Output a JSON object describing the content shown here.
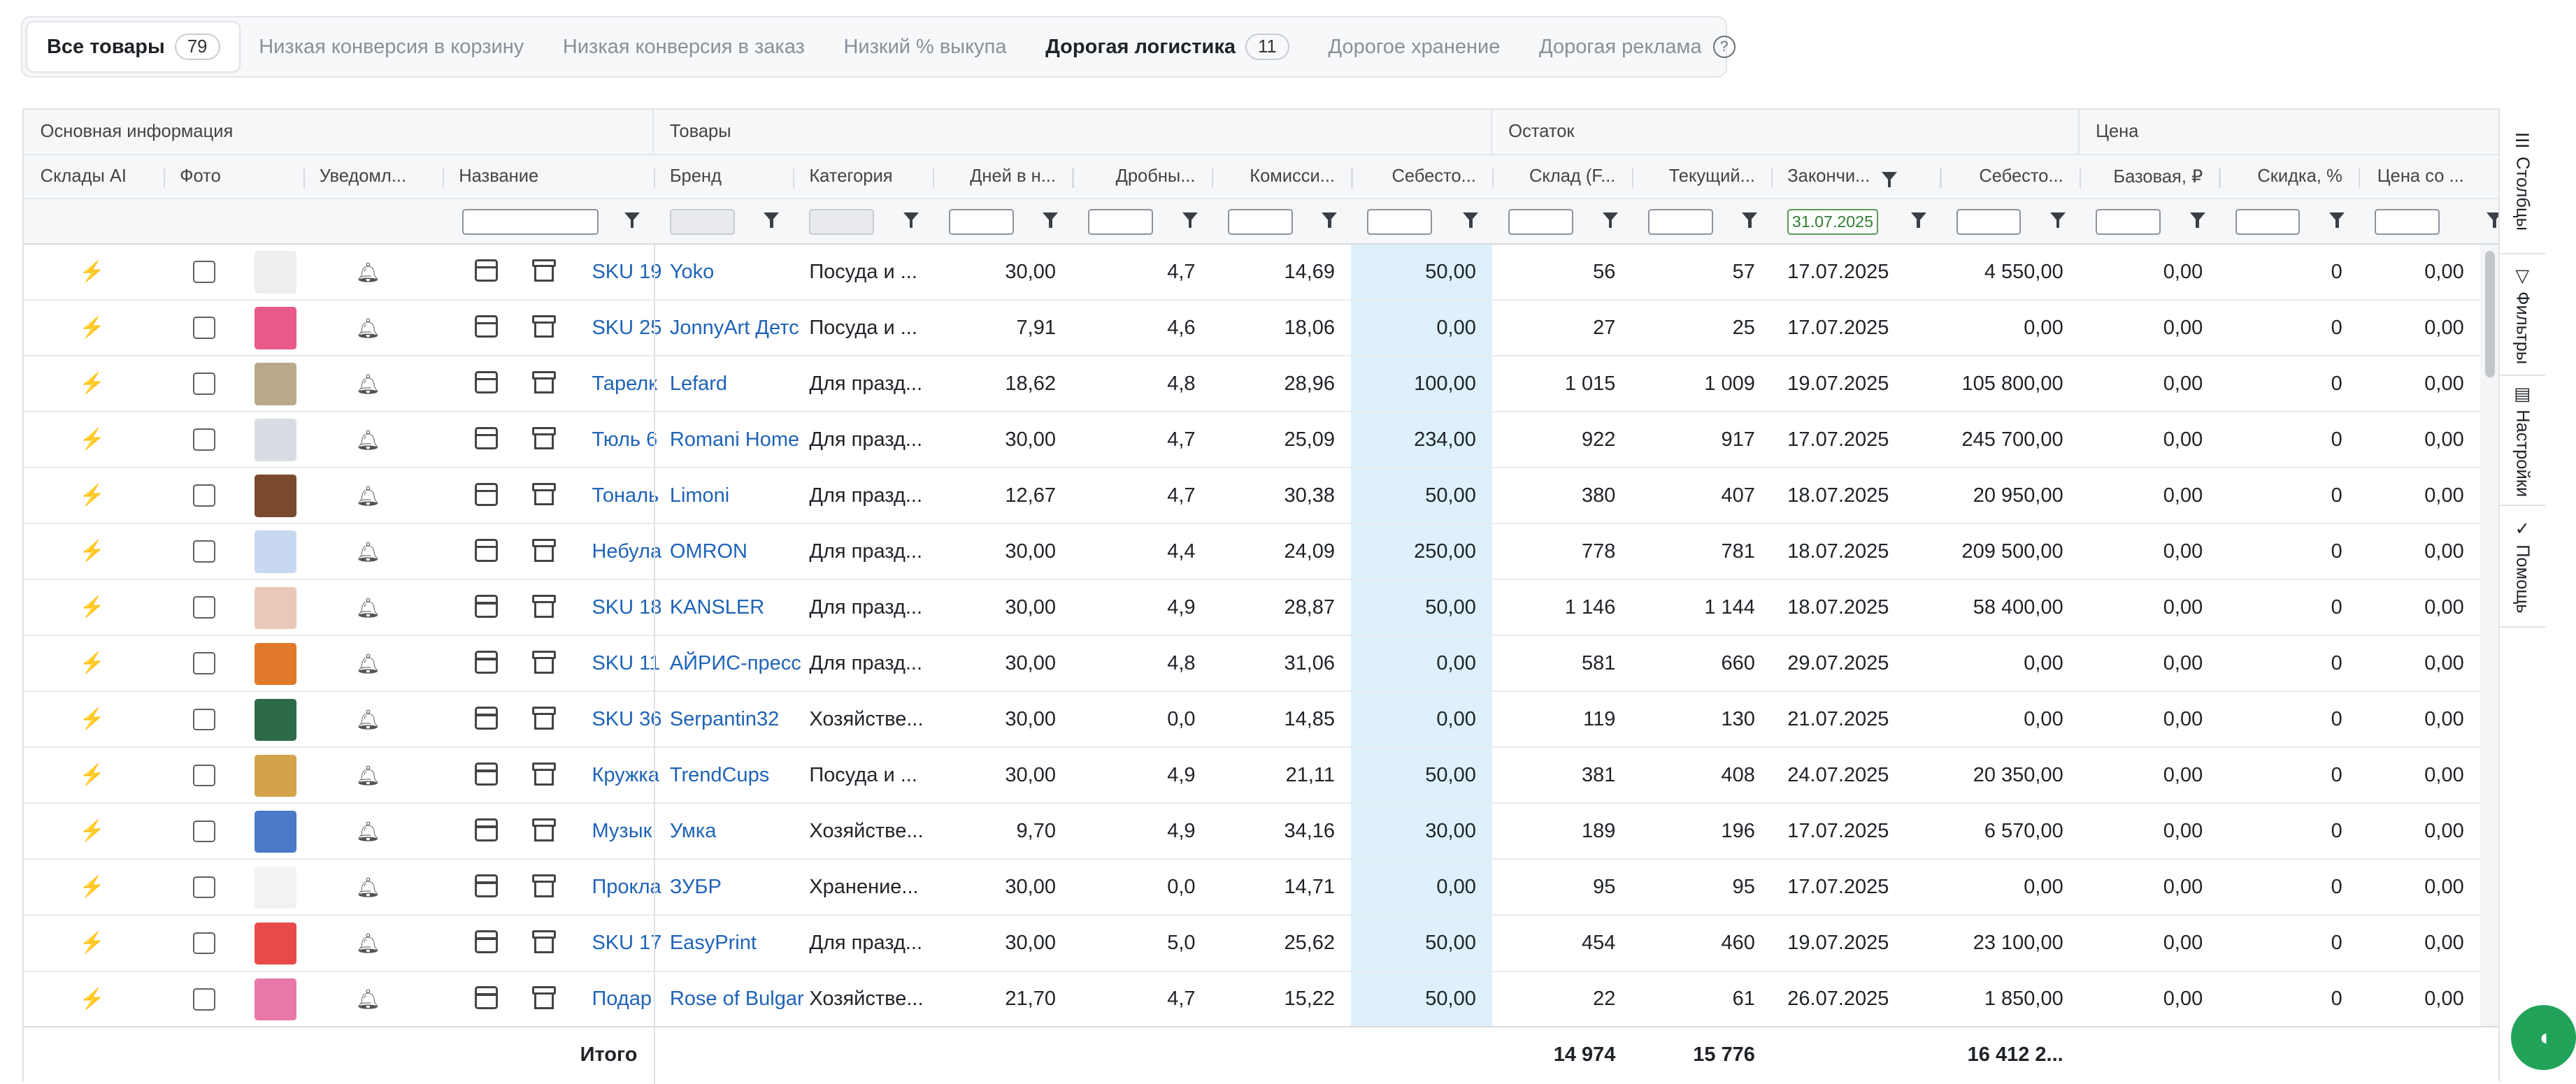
{
  "tabs": [
    {
      "label": "Все товары",
      "count": "79"
    },
    {
      "label": "Низкая конверсия в корзину",
      "count": null
    },
    {
      "label": "Низкая конверсия в заказ",
      "count": null
    },
    {
      "label": "Низкий % выкупа",
      "count": null
    },
    {
      "label": "Дорогая логистика",
      "count": "11"
    },
    {
      "label": "Дорогое хранение",
      "count": null
    },
    {
      "label": "Дорогая реклама",
      "count": null
    }
  ],
  "help_icon": "?",
  "groups": {
    "basic": "Основная информация",
    "goods": "Товары",
    "stock": "Остаток",
    "price": "Цена"
  },
  "columns": {
    "warehouses_ai": "Склады AI",
    "photo": "Фото",
    "notify": "Уведомл...",
    "name": "Название",
    "brand": "Бренд",
    "category": "Категория",
    "days": "Дней в н...",
    "fraction": "Дробны...",
    "commission": "Комисси...",
    "cost": "Себесто...",
    "warehouse_f": "Склад (F...",
    "current": "Текущий...",
    "ends": "Закончи...",
    "cost2": "Себесто...",
    "base_price": "Базовая, ₽",
    "discount": "Скидка, %",
    "price_with": "Цена со ..."
  },
  "ends_filter_value": "31.07.2025",
  "rows": [
    {
      "name": "SKU 19",
      "brand": "Yoko",
      "category": "Посуда и ...",
      "days": "30,00",
      "fraction": "4,7",
      "commission": "14,69",
      "cost": "50,00",
      "wh": "56",
      "cur": "57",
      "ends": "17.07.2025",
      "cost2": "4 550,00",
      "base": "0,00",
      "disc": "0",
      "pw": "0,00",
      "img": "#eeeeee"
    },
    {
      "name": "SKU 25",
      "brand": "JonnyArt Детс",
      "category": "Посуда и ...",
      "days": "7,91",
      "fraction": "4,6",
      "commission": "18,06",
      "cost": "0,00",
      "wh": "27",
      "cur": "25",
      "ends": "17.07.2025",
      "cost2": "0,00",
      "base": "0,00",
      "disc": "0",
      "pw": "0,00",
      "img": "#e85a8a"
    },
    {
      "name": "Тарелк",
      "brand": "Lefard",
      "category": "Для празд...",
      "days": "18,62",
      "fraction": "4,8",
      "commission": "28,96",
      "cost": "100,00",
      "wh": "1 015",
      "cur": "1 009",
      "ends": "19.07.2025",
      "cost2": "105 800,00",
      "base": "0,00",
      "disc": "0",
      "pw": "0,00",
      "img": "#b9a98a"
    },
    {
      "name": "Тюль 6",
      "brand": "Romani Home",
      "category": "Для празд...",
      "days": "30,00",
      "fraction": "4,7",
      "commission": "25,09",
      "cost": "234,00",
      "wh": "922",
      "cur": "917",
      "ends": "17.07.2025",
      "cost2": "245 700,00",
      "base": "0,00",
      "disc": "0",
      "pw": "0,00",
      "img": "#d9dde3"
    },
    {
      "name": "Тональ",
      "brand": "Limoni",
      "category": "Для празд...",
      "days": "12,67",
      "fraction": "4,7",
      "commission": "30,38",
      "cost": "50,00",
      "wh": "380",
      "cur": "407",
      "ends": "18.07.2025",
      "cost2": "20 950,00",
      "base": "0,00",
      "disc": "0",
      "pw": "0,00",
      "img": "#7a4a2e"
    },
    {
      "name": "Небула",
      "brand": "OMRON",
      "category": "Для празд...",
      "days": "30,00",
      "fraction": "4,4",
      "commission": "24,09",
      "cost": "250,00",
      "wh": "778",
      "cur": "781",
      "ends": "18.07.2025",
      "cost2": "209 500,00",
      "base": "0,00",
      "disc": "0",
      "pw": "0,00",
      "img": "#c8d8f0"
    },
    {
      "name": "SKU 18",
      "brand": "KANSLER",
      "category": "Для празд...",
      "days": "30,00",
      "fraction": "4,9",
      "commission": "28,87",
      "cost": "50,00",
      "wh": "1 146",
      "cur": "1 144",
      "ends": "18.07.2025",
      "cost2": "58 400,00",
      "base": "0,00",
      "disc": "0",
      "pw": "0,00",
      "img": "#e8c8b8"
    },
    {
      "name": "SKU 11",
      "brand": "АЙРИС-пресс",
      "category": "Для празд...",
      "days": "30,00",
      "fraction": "4,8",
      "commission": "31,06",
      "cost": "0,00",
      "wh": "581",
      "cur": "660",
      "ends": "29.07.2025",
      "cost2": "0,00",
      "base": "0,00",
      "disc": "0",
      "pw": "0,00",
      "img": "#e07a2a"
    },
    {
      "name": "SKU 36",
      "brand": "Serpantin32",
      "category": "Хозяйстве...",
      "days": "30,00",
      "fraction": "0,0",
      "commission": "14,85",
      "cost": "0,00",
      "wh": "119",
      "cur": "130",
      "ends": "21.07.2025",
      "cost2": "0,00",
      "base": "0,00",
      "disc": "0",
      "pw": "0,00",
      "img": "#2d6a4a"
    },
    {
      "name": "Кружка",
      "brand": "TrendCups",
      "category": "Посуда и ...",
      "days": "30,00",
      "fraction": "4,9",
      "commission": "21,11",
      "cost": "50,00",
      "wh": "381",
      "cur": "408",
      "ends": "24.07.2025",
      "cost2": "20 350,00",
      "base": "0,00",
      "disc": "0",
      "pw": "0,00",
      "img": "#d4a24a"
    },
    {
      "name": "Музык",
      "brand": "Умка",
      "category": "Хозяйстве...",
      "days": "9,70",
      "fraction": "4,9",
      "commission": "34,16",
      "cost": "30,00",
      "wh": "189",
      "cur": "196",
      "ends": "17.07.2025",
      "cost2": "6 570,00",
      "base": "0,00",
      "disc": "0",
      "pw": "0,00",
      "img": "#4a7ac8"
    },
    {
      "name": "Прокла",
      "brand": "ЗУБР",
      "category": "Хранение...",
      "days": "30,00",
      "fraction": "0,0",
      "commission": "14,71",
      "cost": "0,00",
      "wh": "95",
      "cur": "95",
      "ends": "17.07.2025",
      "cost2": "0,00",
      "base": "0,00",
      "disc": "0",
      "pw": "0,00",
      "img": "#f2f2f2"
    },
    {
      "name": "SKU 17",
      "brand": "EasyPrint",
      "category": "Для празд...",
      "days": "30,00",
      "fraction": "5,0",
      "commission": "25,62",
      "cost": "50,00",
      "wh": "454",
      "cur": "460",
      "ends": "19.07.2025",
      "cost2": "23 100,00",
      "base": "0,00",
      "disc": "0",
      "pw": "0,00",
      "img": "#e84a4a"
    },
    {
      "name": "Подар",
      "brand": "Rose of Bulgar",
      "category": "Хозяйстве...",
      "days": "21,70",
      "fraction": "4,7",
      "commission": "15,22",
      "cost": "50,00",
      "wh": "22",
      "cur": "61",
      "ends": "26.07.2025",
      "cost2": "1 850,00",
      "base": "0,00",
      "disc": "0",
      "pw": "0,00",
      "img": "#e878a8"
    }
  ],
  "footer": {
    "label": "Итого",
    "wh_total": "14 974",
    "cur_total": "15 776",
    "cost2_total": "16 412 2..."
  },
  "side": {
    "columns": "Столбцы",
    "filters": "Фильтры",
    "settings": "Настройки",
    "help": "Помощь"
  }
}
